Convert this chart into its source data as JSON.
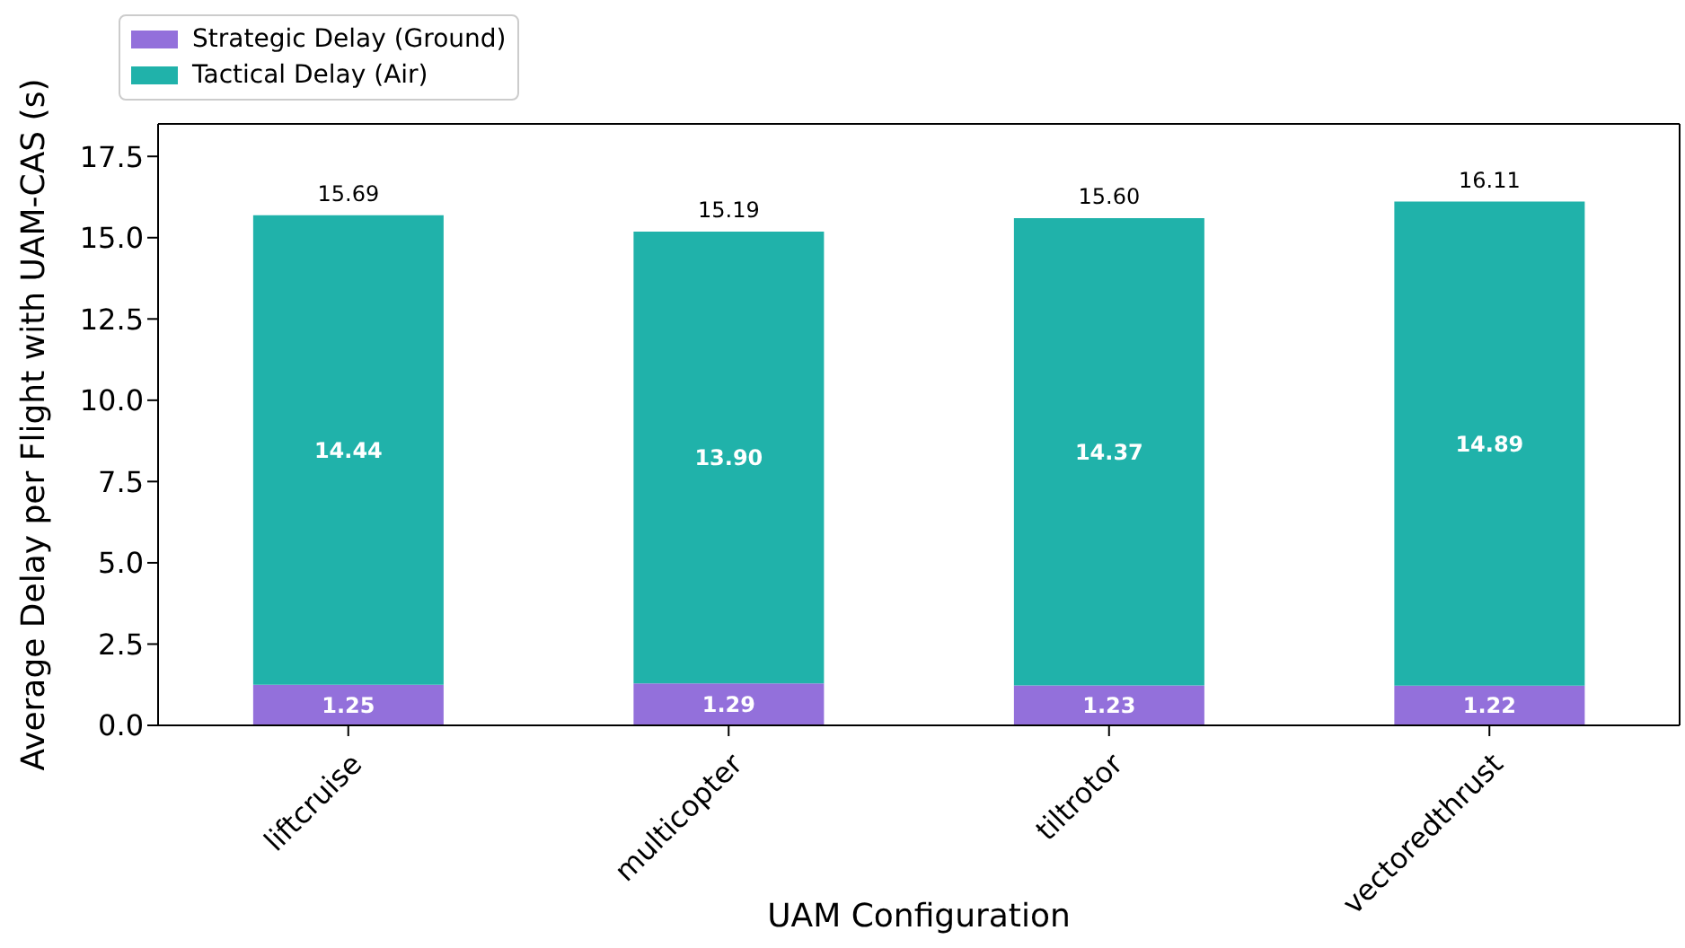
{
  "chart_data": {
    "type": "bar",
    "stacked": true,
    "xlabel": "UAM Configuration",
    "ylabel": "Average Delay per Flight with UAM-CAS (s)",
    "categories": [
      "liftcruise",
      "multicopter",
      "tiltrotor",
      "vectoredthrust"
    ],
    "series": [
      {
        "name": "Strategic Delay (Ground)",
        "color": "#9370db",
        "values": [
          1.25,
          1.29,
          1.23,
          1.22
        ],
        "value_labels": [
          "1.25",
          "1.29",
          "1.23",
          "1.22"
        ]
      },
      {
        "name": "Tactical Delay (Air)",
        "color": "#20b2aa",
        "values": [
          14.44,
          13.9,
          14.37,
          14.89
        ],
        "value_labels": [
          "14.44",
          "13.90",
          "14.37",
          "14.89"
        ]
      }
    ],
    "totals": [
      "15.69",
      "15.19",
      "15.60",
      "16.11"
    ],
    "ylim": [
      0,
      18.5
    ],
    "yticks": [
      {
        "value": 0,
        "label": "0.0"
      },
      {
        "value": 2.5,
        "label": "2.5"
      },
      {
        "value": 5,
        "label": "5.0"
      },
      {
        "value": 7.5,
        "label": "7.5"
      },
      {
        "value": 10,
        "label": "10.0"
      },
      {
        "value": 12.5,
        "label": "12.5"
      },
      {
        "value": 15,
        "label": "15.0"
      },
      {
        "value": 17.5,
        "label": "17.5"
      }
    ],
    "grid": false,
    "legend": "top left"
  }
}
